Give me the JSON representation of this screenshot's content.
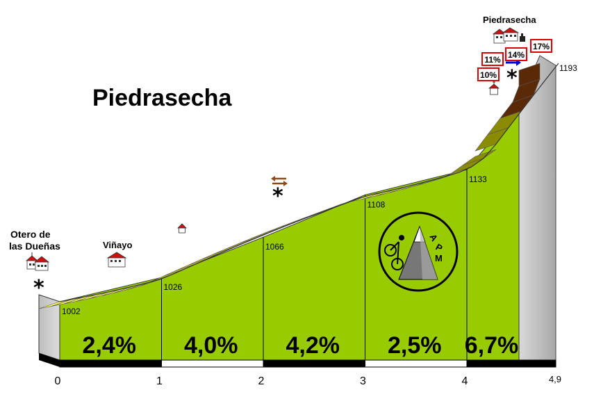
{
  "chart_data": {
    "type": "area",
    "title": "Piedrasecha",
    "xlabel": "",
    "ylabel": "",
    "x_unit": "km",
    "x_ticks": [
      "0",
      "1",
      "2",
      "3",
      "4",
      "4,9"
    ],
    "xlim": [
      0,
      4.9
    ],
    "start_altitude": 1002,
    "altitude_points": [
      {
        "km": 0,
        "alt": 1002,
        "label": "1002"
      },
      {
        "km": 1,
        "alt": 1026,
        "label": "1026"
      },
      {
        "km": 2,
        "alt": 1066,
        "label": "1066"
      },
      {
        "km": 3,
        "alt": 1108,
        "label": "1108"
      },
      {
        "km": 4,
        "alt": 1133,
        "label": "1133"
      },
      {
        "km": 4.9,
        "alt": 1193,
        "label": "1193"
      }
    ],
    "segments": [
      {
        "from": 0,
        "to": 1,
        "gradient": "2,4%"
      },
      {
        "from": 1,
        "to": 2,
        "gradient": "4,0%"
      },
      {
        "from": 2,
        "to": 3,
        "gradient": "4,2%"
      },
      {
        "from": 3,
        "to": 4,
        "gradient": "2,5%"
      },
      {
        "from": 4,
        "to": 4.9,
        "gradient": "6,7%"
      }
    ],
    "max_gradients": [
      "10%",
      "11%",
      "14%",
      "17%"
    ],
    "places": [
      {
        "name": "Otero de las Dueñas",
        "line1": "Otero de",
        "line2": "las Dueñas"
      },
      {
        "name": "Viñayo"
      },
      {
        "name": "Piedrasecha"
      }
    ],
    "logo_text": "APM",
    "colors": {
      "fill": "#99cc00",
      "band_light": "#ffff66",
      "band_dark": "#8b8b00",
      "steep": "#7a3a10",
      "side": "#c8c8c8",
      "badge_border": "#dd0000"
    }
  }
}
